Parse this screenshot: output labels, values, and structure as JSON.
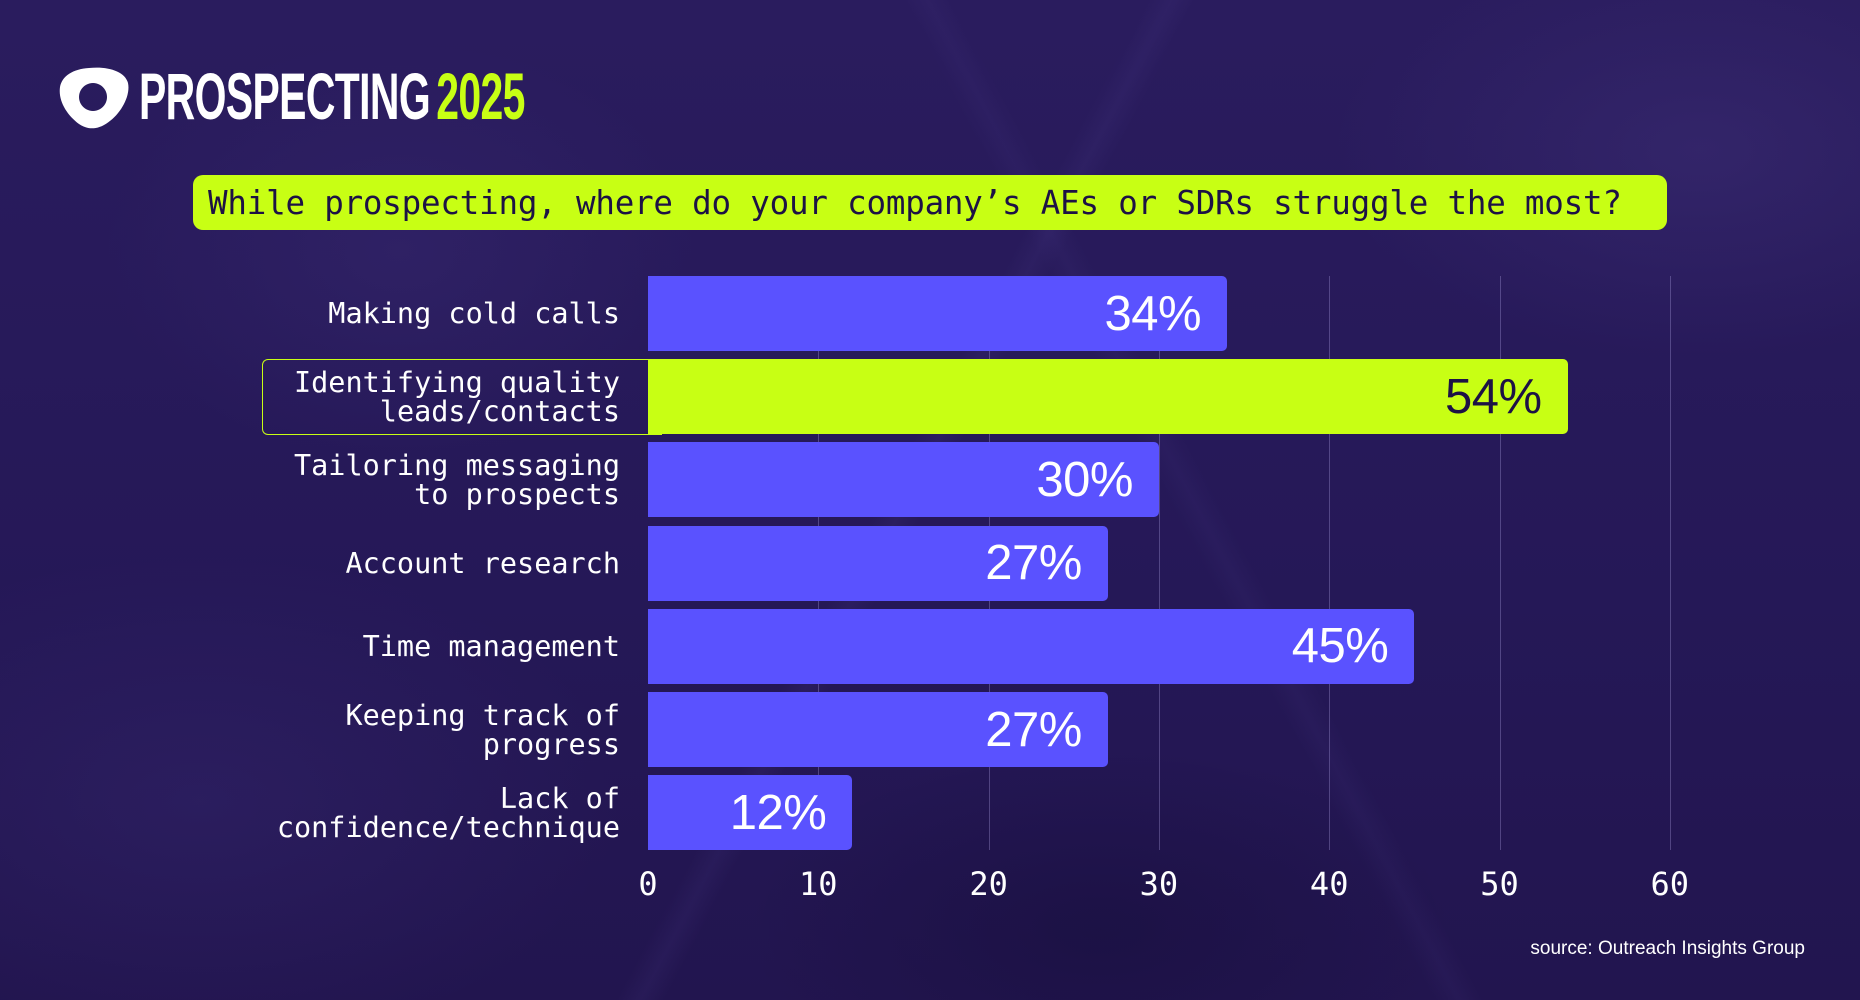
{
  "header": {
    "brand_word": "PROSPECTING",
    "brand_year": "2025",
    "logo_icon": "outreach-logo-icon"
  },
  "question": "While prospecting, where do your company’s AEs or SDRs struggle the most?",
  "source": "source: Outreach Insights Group",
  "colors": {
    "background": "#271a58",
    "bar": "#5a52ff",
    "highlight": "#c8ff14",
    "dark_text": "#1d1245"
  },
  "chart_data": {
    "type": "bar",
    "orientation": "horizontal",
    "title": "While prospecting, where do your company’s AEs or SDRs struggle the most?",
    "xlabel": "",
    "ylabel": "",
    "categories": [
      "Making cold calls",
      "Identifying quality leads/contacts",
      "Tailoring messaging to prospects",
      "Account research",
      "Time management",
      "Keeping track of progress",
      "Lack of confidence/technique"
    ],
    "values": [
      34,
      54,
      30,
      27,
      45,
      27,
      12
    ],
    "value_labels": [
      "34%",
      "54%",
      "30%",
      "27%",
      "45%",
      "27%",
      "12%"
    ],
    "unit": "%",
    "highlighted_category": "Identifying quality leads/contacts",
    "xlim": [
      0,
      60
    ],
    "xticks": [
      "0",
      "10",
      "20",
      "30",
      "40",
      "50",
      "60"
    ],
    "grid": true,
    "legend": null,
    "annotation": "source: Outreach Insights Group"
  },
  "rows": [
    {
      "lines": [
        "Making cold calls"
      ],
      "value": 34,
      "label": "34%"
    },
    {
      "lines": [
        "Identifying quality",
        "leads/contacts"
      ],
      "value": 54,
      "label": "54%"
    },
    {
      "lines": [
        "Tailoring messaging",
        "to prospects"
      ],
      "value": 30,
      "label": "30%"
    },
    {
      "lines": [
        "Account research"
      ],
      "value": 27,
      "label": "27%"
    },
    {
      "lines": [
        "Time management"
      ],
      "value": 45,
      "label": "45%"
    },
    {
      "lines": [
        "Keeping track of",
        "progress"
      ],
      "value": 27,
      "label": "27%"
    },
    {
      "lines": [
        "Lack of",
        "confidence/technique"
      ],
      "value": 12,
      "label": "12%"
    }
  ]
}
